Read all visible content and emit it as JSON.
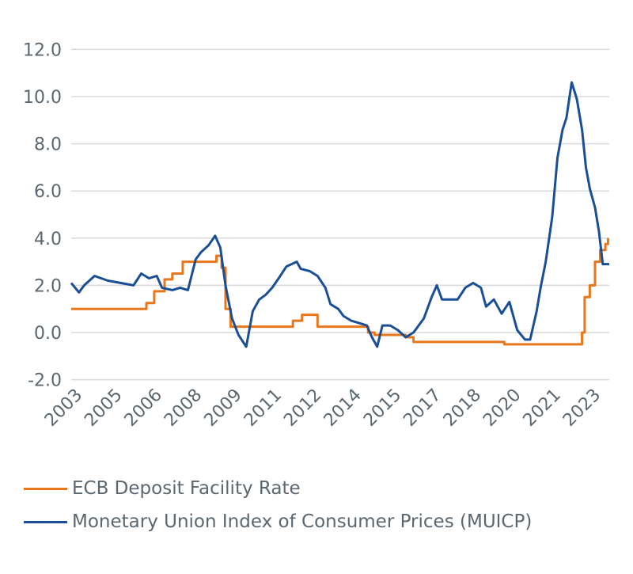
{
  "chart_data": {
    "type": "line",
    "title": "",
    "xlabel": "",
    "ylabel": "",
    "ylim": [
      -2.0,
      12.0
    ],
    "yticks": [
      "-2.0",
      "0.0",
      "2.0",
      "4.0",
      "6.0",
      "8.0",
      "10.0",
      "12.0"
    ],
    "xlim": [
      2003.0,
      2023.75
    ],
    "xtick_labels": [
      "2003",
      "2005",
      "2006",
      "2008",
      "2009",
      "2011",
      "2012",
      "2014",
      "2015",
      "2017",
      "2018",
      "2020",
      "2021",
      "2023"
    ],
    "grid": "horizontal",
    "legend_position": "bottom",
    "series": [
      {
        "name": "ECB Deposit Facility Rate",
        "color": "#e8761a",
        "x": [
          2003.0,
          2005.0,
          2005.9,
          2006.2,
          2006.6,
          2006.9,
          2007.3,
          2008.4,
          2008.6,
          2008.8,
          2008.95,
          2009.15,
          2011.25,
          2011.55,
          2011.9,
          2012.5,
          2014.45,
          2014.7,
          2015.9,
          2016.2,
          2019.7,
          2022.55,
          2022.7,
          2022.8,
          2023.0,
          2023.2,
          2023.4,
          2023.6,
          2023.7
        ],
        "values": [
          1.0,
          1.0,
          1.25,
          1.75,
          2.25,
          2.5,
          3.0,
          3.0,
          3.25,
          2.75,
          1.0,
          0.25,
          0.25,
          0.5,
          0.75,
          0.25,
          0.0,
          -0.1,
          -0.2,
          -0.4,
          -0.5,
          -0.5,
          0.0,
          1.5,
          2.0,
          3.0,
          3.5,
          3.75,
          4.0
        ]
      },
      {
        "name": "Monetary Union Index of Consumer Prices (MUICP)",
        "color": "#1a4f96",
        "x": [
          2003.0,
          2003.3,
          2003.5,
          2003.9,
          2004.4,
          2004.9,
          2005.4,
          2005.7,
          2006.0,
          2006.3,
          2006.5,
          2006.9,
          2007.2,
          2007.5,
          2007.8,
          2008.0,
          2008.3,
          2008.55,
          2008.75,
          2008.95,
          2009.2,
          2009.45,
          2009.75,
          2010.0,
          2010.25,
          2010.5,
          2010.75,
          2011.0,
          2011.3,
          2011.7,
          2011.85,
          2012.2,
          2012.5,
          2012.8,
          2013.0,
          2013.3,
          2013.5,
          2013.8,
          2014.1,
          2014.4,
          2014.6,
          2014.8,
          2015.0,
          2015.3,
          2015.6,
          2015.9,
          2016.2,
          2016.6,
          2016.9,
          2017.1,
          2017.3,
          2017.55,
          2017.9,
          2018.2,
          2018.5,
          2018.8,
          2019.0,
          2019.3,
          2019.6,
          2019.9,
          2020.2,
          2020.5,
          2020.7,
          2020.95,
          2021.1,
          2021.3,
          2021.55,
          2021.75,
          2021.95,
          2022.1,
          2022.3,
          2022.5,
          2022.7,
          2022.85,
          2023.0,
          2023.2,
          2023.35,
          2023.5,
          2023.6,
          2023.75
        ],
        "values": [
          2.1,
          1.7,
          2.0,
          2.4,
          2.2,
          2.1,
          2.0,
          2.5,
          2.3,
          2.4,
          1.9,
          1.8,
          1.9,
          1.8,
          3.1,
          3.4,
          3.7,
          4.1,
          3.6,
          2.0,
          0.6,
          -0.1,
          -0.6,
          0.9,
          1.4,
          1.6,
          1.9,
          2.3,
          2.8,
          3.0,
          2.7,
          2.6,
          2.4,
          1.9,
          1.2,
          1.0,
          0.7,
          0.5,
          0.4,
          0.3,
          -0.2,
          -0.6,
          0.3,
          0.3,
          0.1,
          -0.2,
          0.0,
          0.6,
          1.5,
          2.0,
          1.4,
          1.4,
          1.4,
          1.9,
          2.1,
          1.9,
          1.1,
          1.4,
          0.8,
          1.3,
          0.1,
          -0.3,
          -0.3,
          0.9,
          1.9,
          3.0,
          4.9,
          7.4,
          8.6,
          9.1,
          10.6,
          9.9,
          8.6,
          7.0,
          6.1,
          5.3,
          4.3,
          2.9,
          2.9,
          2.9
        ]
      }
    ]
  }
}
